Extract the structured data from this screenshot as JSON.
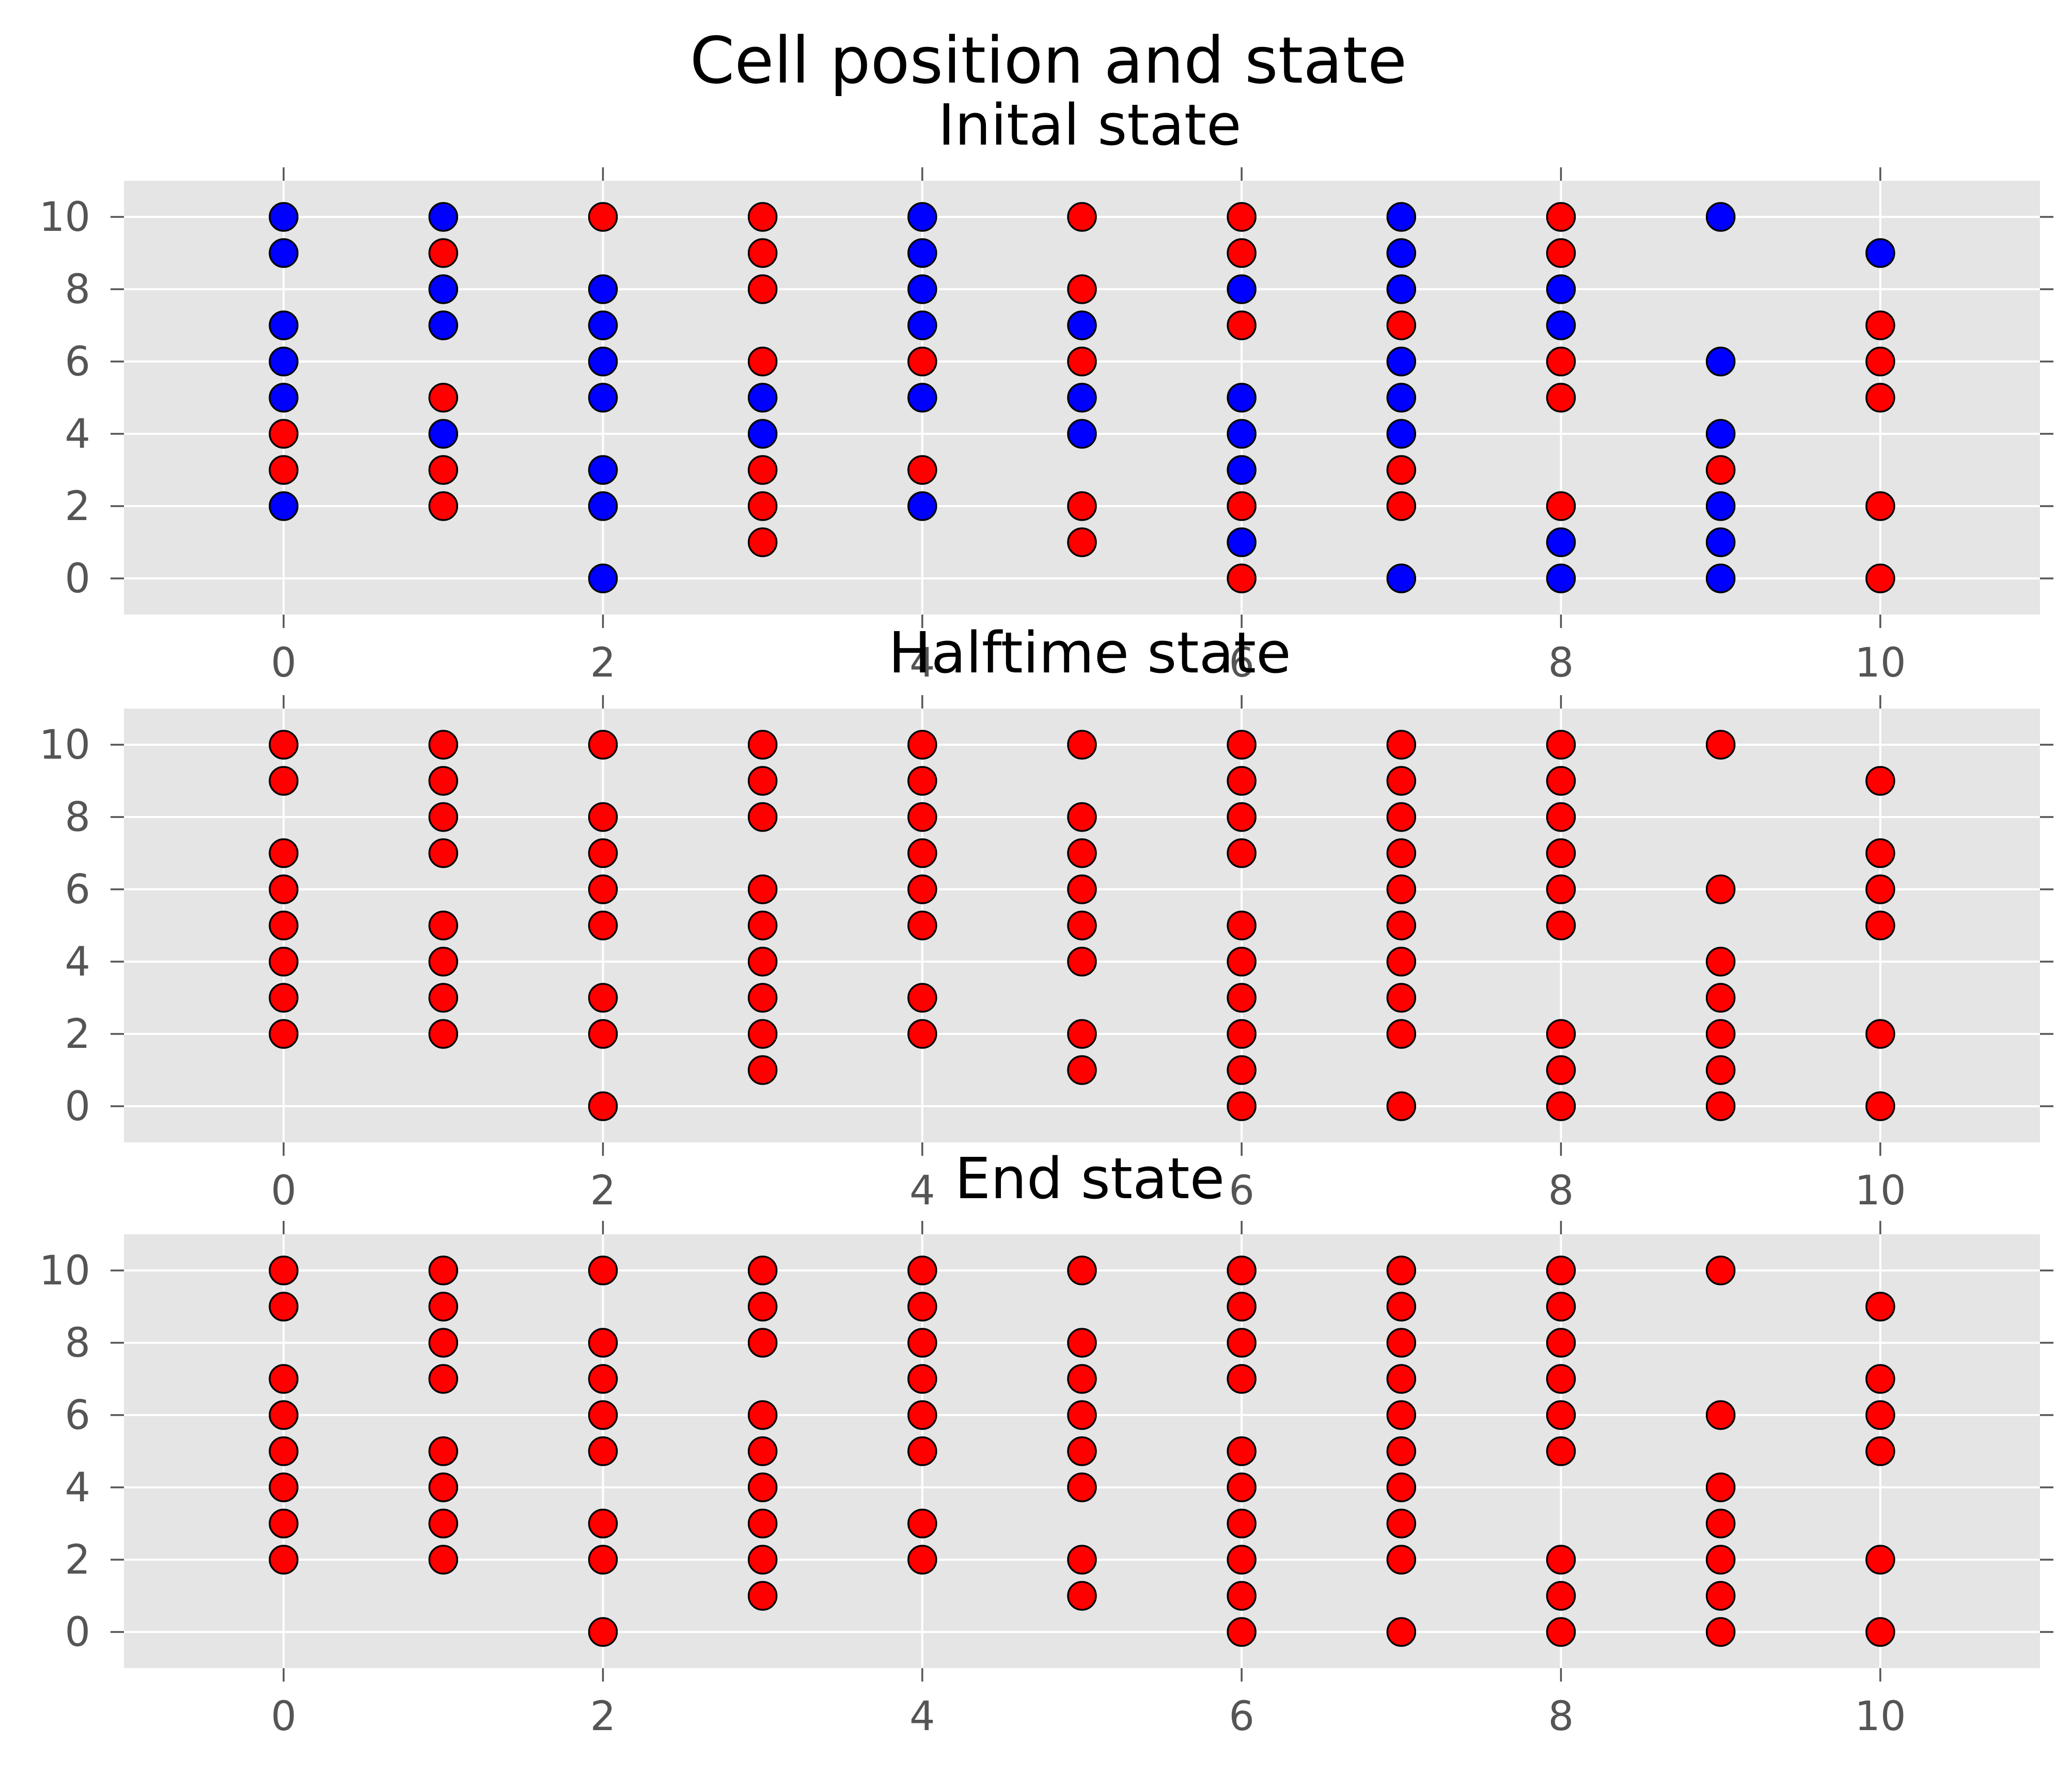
{
  "chart_data": {
    "type": "scatter",
    "title": "Cell position and state",
    "colors": {
      "panel_background": "#E5E5E5",
      "grid": "#FFFFFF",
      "state_red": "#FF0000",
      "state_blue": "#0000FF",
      "point_edge": "#000000",
      "tick_text": "#555555"
    },
    "grid": true,
    "xlim": [
      -1,
      11
    ],
    "ylim": [
      -1,
      11
    ],
    "xticks": [
      0,
      2,
      4,
      6,
      8,
      10
    ],
    "yticks": [
      0,
      2,
      4,
      6,
      8,
      10
    ],
    "cells": [
      {
        "x": 0,
        "y": [
          2,
          3,
          4,
          5,
          6,
          7,
          9,
          10
        ]
      },
      {
        "x": 1,
        "y": [
          2,
          3,
          4,
          5,
          7,
          8,
          9,
          10
        ]
      },
      {
        "x": 2,
        "y": [
          0,
          2,
          3,
          5,
          6,
          7,
          8,
          10
        ]
      },
      {
        "x": 3,
        "y": [
          1,
          2,
          3,
          4,
          5,
          6,
          8,
          9,
          10
        ]
      },
      {
        "x": 4,
        "y": [
          2,
          3,
          5,
          6,
          7,
          8,
          9,
          10
        ]
      },
      {
        "x": 5,
        "y": [
          1,
          2,
          4,
          5,
          6,
          7,
          8,
          10
        ]
      },
      {
        "x": 6,
        "y": [
          0,
          1,
          2,
          3,
          4,
          5,
          7,
          8,
          9,
          10
        ]
      },
      {
        "x": 7,
        "y": [
          0,
          2,
          3,
          4,
          5,
          6,
          7,
          8,
          9,
          10
        ]
      },
      {
        "x": 8,
        "y": [
          0,
          1,
          2,
          5,
          6,
          7,
          8,
          9,
          10
        ]
      },
      {
        "x": 9,
        "y": [
          0,
          1,
          2,
          3,
          4,
          6,
          10
        ]
      },
      {
        "x": 10,
        "y": [
          0,
          2,
          5,
          6,
          7,
          9
        ]
      }
    ],
    "panels": [
      {
        "title": "Inital state",
        "blue_cells": [
          [
            0,
            2
          ],
          [
            0,
            5
          ],
          [
            0,
            6
          ],
          [
            0,
            7
          ],
          [
            0,
            9
          ],
          [
            0,
            10
          ],
          [
            1,
            4
          ],
          [
            1,
            7
          ],
          [
            1,
            8
          ],
          [
            1,
            10
          ],
          [
            2,
            0
          ],
          [
            2,
            2
          ],
          [
            2,
            3
          ],
          [
            2,
            5
          ],
          [
            2,
            6
          ],
          [
            2,
            7
          ],
          [
            2,
            8
          ],
          [
            3,
            4
          ],
          [
            3,
            5
          ],
          [
            4,
            2
          ],
          [
            4,
            5
          ],
          [
            4,
            7
          ],
          [
            4,
            8
          ],
          [
            4,
            9
          ],
          [
            4,
            10
          ],
          [
            5,
            4
          ],
          [
            5,
            5
          ],
          [
            5,
            7
          ],
          [
            6,
            1
          ],
          [
            6,
            3
          ],
          [
            6,
            4
          ],
          [
            6,
            5
          ],
          [
            6,
            8
          ],
          [
            7,
            0
          ],
          [
            7,
            4
          ],
          [
            7,
            5
          ],
          [
            7,
            6
          ],
          [
            7,
            8
          ],
          [
            7,
            9
          ],
          [
            7,
            10
          ],
          [
            8,
            0
          ],
          [
            8,
            1
          ],
          [
            8,
            7
          ],
          [
            8,
            8
          ],
          [
            9,
            0
          ],
          [
            9,
            1
          ],
          [
            9,
            2
          ],
          [
            9,
            4
          ],
          [
            9,
            6
          ],
          [
            9,
            10
          ],
          [
            10,
            9
          ]
        ]
      },
      {
        "title": "Halftime state",
        "blue_cells": []
      },
      {
        "title": "End state",
        "blue_cells": []
      }
    ]
  }
}
